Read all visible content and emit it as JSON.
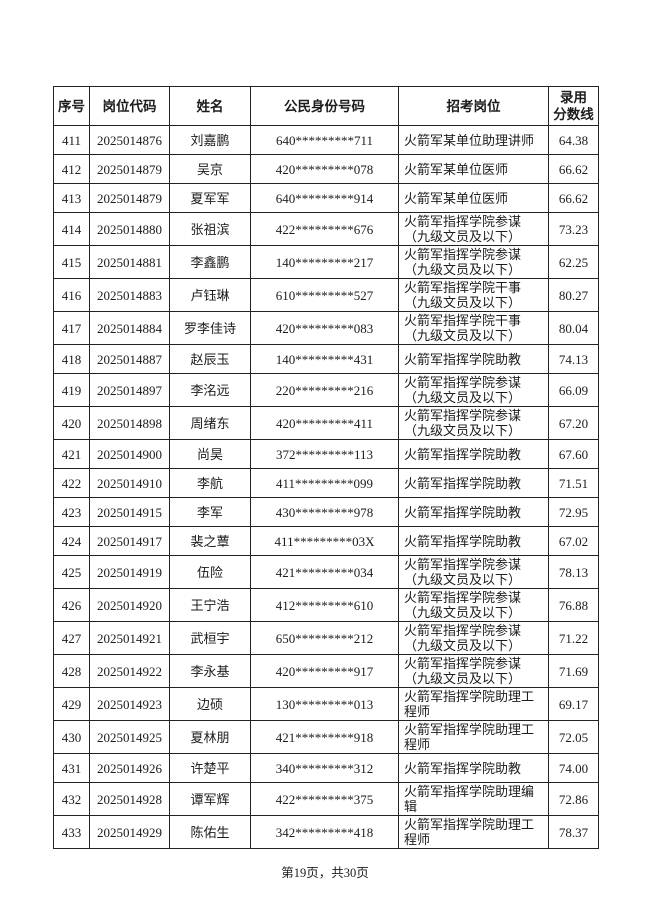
{
  "page": {
    "footer": "第19页，共30页"
  },
  "table": {
    "headers": [
      "序号",
      "岗位代码",
      "姓名",
      "公民身份号码",
      "招考岗位",
      "录用\n分数线"
    ],
    "rows": [
      {
        "seq": "411",
        "code": "2025014876",
        "name": "刘嘉鹏",
        "id": "640*********711",
        "position": "火箭军某单位助理讲师",
        "score": "64.38"
      },
      {
        "seq": "412",
        "code": "2025014879",
        "name": "吴京",
        "id": "420*********078",
        "position": "火箭军某单位医师",
        "score": "66.62"
      },
      {
        "seq": "413",
        "code": "2025014879",
        "name": "夏军军",
        "id": "640*********914",
        "position": "火箭军某单位医师",
        "score": "66.62"
      },
      {
        "seq": "414",
        "code": "2025014880",
        "name": "张祖滨",
        "id": "422*********676",
        "position": "火箭军指挥学院参谋（九级文员及以下）",
        "score": "73.23"
      },
      {
        "seq": "415",
        "code": "2025014881",
        "name": "李鑫鹏",
        "id": "140*********217",
        "position": "火箭军指挥学院参谋（九级文员及以下）",
        "score": "62.25"
      },
      {
        "seq": "416",
        "code": "2025014883",
        "name": "卢钰琳",
        "id": "610*********527",
        "position": "火箭军指挥学院干事（九级文员及以下）",
        "score": "80.27"
      },
      {
        "seq": "417",
        "code": "2025014884",
        "name": "罗李佳诗",
        "id": "420*********083",
        "position": "火箭军指挥学院干事（九级文员及以下）",
        "score": "80.04"
      },
      {
        "seq": "418",
        "code": "2025014887",
        "name": "赵辰玉",
        "id": "140*********431",
        "position": "火箭军指挥学院助教",
        "score": "74.13"
      },
      {
        "seq": "419",
        "code": "2025014897",
        "name": "李洺远",
        "id": "220*********216",
        "position": "火箭军指挥学院参谋（九级文员及以下）",
        "score": "66.09"
      },
      {
        "seq": "420",
        "code": "2025014898",
        "name": "周绪东",
        "id": "420*********411",
        "position": "火箭军指挥学院参谋（九级文员及以下）",
        "score": "67.20"
      },
      {
        "seq": "421",
        "code": "2025014900",
        "name": "尚昊",
        "id": "372*********113",
        "position": "火箭军指挥学院助教",
        "score": "67.60"
      },
      {
        "seq": "422",
        "code": "2025014910",
        "name": "李航",
        "id": "411*********099",
        "position": "火箭军指挥学院助教",
        "score": "71.51"
      },
      {
        "seq": "423",
        "code": "2025014915",
        "name": "李军",
        "id": "430*********978",
        "position": "火箭军指挥学院助教",
        "score": "72.95"
      },
      {
        "seq": "424",
        "code": "2025014917",
        "name": "裴之蕈",
        "id": "411*********03X",
        "position": "火箭军指挥学院助教",
        "score": "67.02"
      },
      {
        "seq": "425",
        "code": "2025014919",
        "name": "伍险",
        "id": "421*********034",
        "position": "火箭军指挥学院参谋（九级文员及以下）",
        "score": "78.13"
      },
      {
        "seq": "426",
        "code": "2025014920",
        "name": "王宁浩",
        "id": "412*********610",
        "position": "火箭军指挥学院参谋（九级文员及以下）",
        "score": "76.88"
      },
      {
        "seq": "427",
        "code": "2025014921",
        "name": "武桓宇",
        "id": "650*********212",
        "position": "火箭军指挥学院参谋（九级文员及以下）",
        "score": "71.22"
      },
      {
        "seq": "428",
        "code": "2025014922",
        "name": "李永基",
        "id": "420*********917",
        "position": "火箭军指挥学院参谋（九级文员及以下）",
        "score": "71.69"
      },
      {
        "seq": "429",
        "code": "2025014923",
        "name": "边硕",
        "id": "130*********013",
        "position": "火箭军指挥学院助理工程师",
        "score": "69.17"
      },
      {
        "seq": "430",
        "code": "2025014925",
        "name": "夏林朋",
        "id": "421*********918",
        "position": "火箭军指挥学院助理工程师",
        "score": "72.05"
      },
      {
        "seq": "431",
        "code": "2025014926",
        "name": "许楚平",
        "id": "340*********312",
        "position": "火箭军指挥学院助教",
        "score": "74.00"
      },
      {
        "seq": "432",
        "code": "2025014928",
        "name": "谭军辉",
        "id": "422*********375",
        "position": "火箭军指挥学院助理编辑",
        "score": "72.86"
      },
      {
        "seq": "433",
        "code": "2025014929",
        "name": "陈佑生",
        "id": "342*********418",
        "position": "火箭军指挥学院助理工程师",
        "score": "78.37"
      }
    ]
  }
}
